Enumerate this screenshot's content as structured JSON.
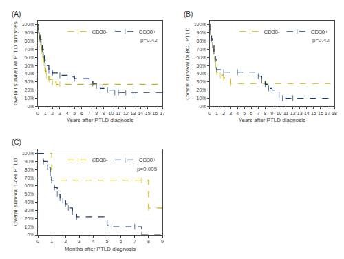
{
  "chart_data": [
    {
      "type": "step",
      "title": "(A)",
      "x_label": "Years after PTLD diagnosis",
      "y_label": "Overall survival all PTLD subtypes",
      "annotations": [
        "p=0.42"
      ],
      "xlim": [
        0,
        17
      ],
      "ylim": [
        0,
        105
      ],
      "xticks": [
        0,
        1,
        2,
        3,
        4,
        5,
        6,
        7,
        8,
        9,
        10,
        11,
        12,
        13,
        14,
        15,
        16,
        17
      ],
      "yticks": [
        {
          "value": 0,
          "label": "0%"
        },
        {
          "value": 10,
          "label": "10%"
        },
        {
          "value": 20,
          "label": "20%"
        },
        {
          "value": 30,
          "label": "30%"
        },
        {
          "value": 40,
          "label": "40%"
        },
        {
          "value": 50,
          "label": "50%"
        },
        {
          "value": 60,
          "label": "60%"
        },
        {
          "value": 70,
          "label": "70%"
        },
        {
          "value": 80,
          "label": "80%"
        },
        {
          "value": 90,
          "label": "90%"
        },
        {
          "value": 100,
          "label": "100%"
        }
      ],
      "grid": false,
      "legend": "upper right",
      "series": [
        {
          "name": "CD30-",
          "color": "#c8b400",
          "line_style": "dashed",
          "marker": "vline",
          "x": [
            0,
            0.08,
            0.15,
            0.25,
            0.35,
            0.45,
            0.55,
            0.65,
            0.75,
            0.85,
            0.95,
            1.05,
            1.2,
            1.5,
            2.0,
            2.5,
            3.0,
            17
          ],
          "values": [
            100,
            93,
            88,
            83,
            78,
            73,
            68,
            63,
            58,
            53,
            47,
            43,
            38,
            33,
            30,
            27,
            27,
            27
          ]
        },
        {
          "name": "CD30+",
          "color": "#1a3a6b",
          "line_style": "dashed",
          "marker": "vline",
          "x": [
            0,
            0.1,
            0.2,
            0.3,
            0.45,
            0.6,
            0.75,
            0.9,
            1.0,
            1.5,
            2.0,
            3.0,
            4.0,
            5.0,
            7.0,
            7.5,
            8.0,
            8.5,
            9.5,
            10.5,
            11.0,
            12.0,
            13.0,
            17
          ],
          "values": [
            100,
            93,
            87,
            82,
            76,
            70,
            63,
            57,
            50,
            44,
            41,
            38,
            36,
            34,
            32,
            28,
            25,
            22,
            20,
            17,
            17,
            17,
            17,
            17
          ]
        }
      ]
    },
    {
      "type": "step",
      "title": "(B)",
      "x_label": "Years after PTLD diagnosis",
      "y_label": "Overall survival DLBCL PTLD",
      "annotations": [
        "p=0.42"
      ],
      "xlim": [
        0,
        18
      ],
      "ylim": [
        0,
        105
      ],
      "xticks": [
        0,
        1,
        2,
        3,
        4,
        5,
        6,
        7,
        8,
        9,
        10,
        11,
        12,
        13,
        14,
        15,
        16,
        17,
        18
      ],
      "yticks": [
        {
          "value": 0,
          "label": "0%"
        },
        {
          "value": 10,
          "label": "10%"
        },
        {
          "value": 20,
          "label": "20%"
        },
        {
          "value": 30,
          "label": "30%"
        },
        {
          "value": 40,
          "label": "40%"
        },
        {
          "value": 50,
          "label": "50%"
        },
        {
          "value": 60,
          "label": "60%"
        },
        {
          "value": 70,
          "label": "70%"
        },
        {
          "value": 80,
          "label": "80%"
        },
        {
          "value": 90,
          "label": "90%"
        },
        {
          "value": 100,
          "label": "100%"
        }
      ],
      "grid": false,
      "legend": "upper right",
      "series": [
        {
          "name": "CD30-",
          "color": "#c8b400",
          "line_style": "dashed",
          "marker": "vline",
          "x": [
            0,
            0.1,
            0.25,
            0.4,
            0.55,
            0.7,
            0.85,
            1.0,
            1.5,
            2.0,
            3.0,
            18
          ],
          "values": [
            100,
            91,
            82,
            75,
            67,
            58,
            50,
            42,
            38,
            35,
            28,
            28
          ]
        },
        {
          "name": "CD30+",
          "color": "#1a3a6b",
          "line_style": "dashed",
          "marker": "vline",
          "x": [
            0,
            0.1,
            0.25,
            0.4,
            0.6,
            0.8,
            1.0,
            2.0,
            4.0,
            7.0,
            7.5,
            8.0,
            8.5,
            9.0,
            10.0,
            10.5,
            11.0,
            12.0,
            18
          ],
          "values": [
            100,
            91,
            83,
            75,
            67,
            58,
            45,
            42,
            42,
            37,
            32,
            27,
            22,
            20,
            10,
            10,
            10,
            10,
            10
          ]
        }
      ]
    },
    {
      "type": "step",
      "title": "(C)",
      "x_label": "Months after PTLD diagnosis",
      "y_label": "Overall survival T-cell PTLD",
      "annotations": [
        "p=0.005"
      ],
      "xlim": [
        0,
        9
      ],
      "ylim": [
        0,
        105
      ],
      "xticks": [
        0,
        1,
        2,
        3,
        4,
        5,
        6,
        7,
        8,
        9
      ],
      "yticks": [
        {
          "value": 0,
          "label": "0%"
        },
        {
          "value": 10,
          "label": "10%"
        },
        {
          "value": 20,
          "label": "20%"
        },
        {
          "value": 30,
          "label": "30%"
        },
        {
          "value": 40,
          "label": "40%"
        },
        {
          "value": 50,
          "label": "50%"
        },
        {
          "value": 60,
          "label": "60%"
        },
        {
          "value": 70,
          "label": "70%"
        },
        {
          "value": 80,
          "label": "80%"
        },
        {
          "value": 90,
          "label": "90%"
        },
        {
          "value": 100,
          "label": "100%"
        }
      ],
      "grid": false,
      "legend": "upper right",
      "series": [
        {
          "name": "CD30-",
          "color": "#c8b400",
          "line_style": "dashed",
          "marker": "vline",
          "x": [
            0,
            1.0,
            7.5,
            8.0,
            9
          ],
          "values": [
            100,
            67,
            67,
            33,
            33
          ]
        },
        {
          "name": "CD30+",
          "color": "#1a3a6b",
          "line_style": "dashed",
          "marker": "vline",
          "x": [
            0,
            0.4,
            0.7,
            0.9,
            1.0,
            1.2,
            1.4,
            1.6,
            1.8,
            2.0,
            2.2,
            2.5,
            2.8,
            5.0,
            5.3,
            7.0,
            7.5,
            9
          ],
          "values": [
            100,
            90,
            83,
            75,
            67,
            58,
            50,
            45,
            42,
            38,
            33,
            28,
            22,
            12,
            10,
            10,
            0,
            0
          ]
        }
      ]
    }
  ]
}
